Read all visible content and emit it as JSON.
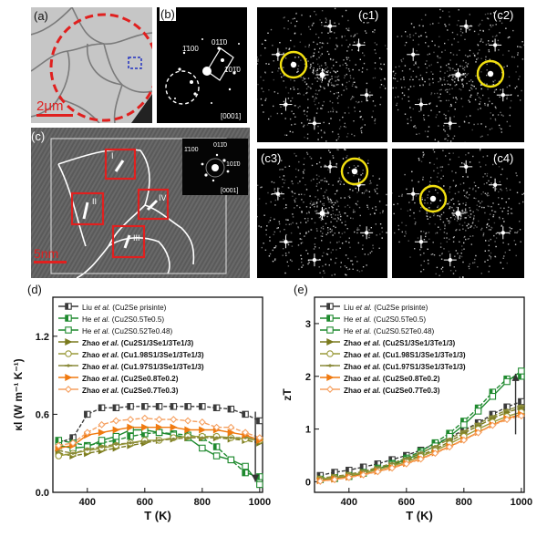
{
  "figure": {
    "panels": {
      "a": {
        "label": "(a)",
        "scale_bar": "2μm"
      },
      "b": {
        "label": "(b)",
        "zone_axis": "[0001]",
        "spots": [
          "1̄100",
          "011̄0",
          "101̄0"
        ]
      },
      "c": {
        "label": "(c)",
        "zone_axis": "[0001]",
        "scale_bar": "5nm",
        "spots": [
          "1̄100",
          "011̄0",
          "101̄0"
        ],
        "regions": [
          "I",
          "II",
          "III",
          "IV"
        ]
      },
      "c1": {
        "label": "(c1)"
      },
      "c2": {
        "label": "(c2)"
      },
      "c3": {
        "label": "(c3)"
      },
      "c4": {
        "label": "(c4)"
      },
      "d": {
        "label": "(d)"
      },
      "e": {
        "label": "(e)"
      }
    },
    "legend": [
      {
        "author": "Liu",
        "etal": "et al.",
        "formula": "(Cu2Se prisinte)",
        "bold": false,
        "color": "#3a3a3a",
        "marker": "half-square"
      },
      {
        "author": "He",
        "etal": "et al.",
        "formula": "(Cu2S0.5Te0.5)",
        "bold": false,
        "color": "#1f8a2f",
        "marker": "half-square"
      },
      {
        "author": "He",
        "etal": "et al.",
        "formula": "(Cu2S0.52Te0.48)",
        "bold": false,
        "color": "#1f8a2f",
        "marker": "open-square"
      },
      {
        "author": "Zhao",
        "etal": "et al.",
        "formula": "(Cu2S1/3Se1/3Te1/3)",
        "bold": true,
        "color": "#7a7a1e",
        "marker": "half-triangle"
      },
      {
        "author": "Zhao",
        "etal": "et al.",
        "formula": "(Cu1.98S1/3Se1/3Te1/3)",
        "bold": true,
        "color": "#9a9a3a",
        "marker": "open-circle"
      },
      {
        "author": "Zhao",
        "etal": "et al.",
        "formula": "(Cu1.97S1/3Se1/3Te1/3)",
        "bold": true,
        "color": "#8a8a3a",
        "marker": "star"
      },
      {
        "author": "Zhao",
        "etal": "et al.",
        "formula": "(Cu2Se0.8Te0.2)",
        "bold": true,
        "color": "#f07a10",
        "marker": "half-triangle"
      },
      {
        "author": "Zhao",
        "etal": "et al.",
        "formula": "(Cu2Se0.7Te0.3)",
        "bold": true,
        "color": "#f5a060",
        "marker": "open-diamond"
      }
    ]
  },
  "chart_data": [
    {
      "type": "line",
      "panel": "(d)",
      "xlabel": "T (K)",
      "ylabel": "κl (W m⁻¹ K⁻¹)",
      "xlim": [
        280,
        1010
      ],
      "ylim": [
        0,
        1.5
      ],
      "xticks": [
        400,
        600,
        800,
        1000
      ],
      "yticks": [
        0.0,
        0.6,
        1.2
      ],
      "x": [
        300,
        350,
        400,
        450,
        500,
        550,
        600,
        650,
        700,
        750,
        800,
        850,
        900,
        950,
        1000
      ],
      "series": [
        {
          "name": "Liu et al. (Cu2Se prisinte)",
          "values": [
            0.38,
            0.42,
            0.6,
            0.65,
            0.65,
            0.66,
            0.66,
            0.66,
            0.66,
            0.66,
            0.66,
            0.65,
            0.64,
            0.6,
            0.55
          ]
        },
        {
          "name": "He et al. (Cu2S0.5Te0.5)",
          "values": [
            0.4,
            0.38,
            0.36,
            0.38,
            0.4,
            0.43,
            0.45,
            0.46,
            0.45,
            0.44,
            0.42,
            0.35,
            0.25,
            0.15,
            0.12
          ]
        },
        {
          "name": "He et al. (Cu2S0.52Te0.48)",
          "values": [
            0.36,
            0.34,
            0.35,
            0.4,
            0.43,
            0.48,
            0.48,
            0.46,
            0.44,
            0.42,
            0.34,
            0.28,
            0.25,
            0.2,
            0.06
          ]
        },
        {
          "name": "Zhao et al. (Cu2S1/3Se1/3Te1/3)",
          "values": [
            0.3,
            0.28,
            0.3,
            0.32,
            0.34,
            0.36,
            0.38,
            0.4,
            0.41,
            0.42,
            0.42,
            0.42,
            0.41,
            0.4,
            0.38
          ]
        },
        {
          "name": "Zhao et al. (Cu1.98S1/3Se1/3Te1/3)",
          "values": [
            0.28,
            0.3,
            0.32,
            0.34,
            0.36,
            0.38,
            0.4,
            0.4,
            0.42,
            0.43,
            0.43,
            0.43,
            0.42,
            0.41,
            0.4
          ]
        },
        {
          "name": "Zhao et al. (Cu1.97S1/3Se1/3Te1/3)",
          "values": [
            0.32,
            0.3,
            0.33,
            0.35,
            0.37,
            0.38,
            0.39,
            0.4,
            0.41,
            0.42,
            0.42,
            0.42,
            0.42,
            0.42,
            0.41
          ]
        },
        {
          "name": "Zhao et al. (Cu2Se0.8Te0.2)",
          "values": [
            0.34,
            0.36,
            0.44,
            0.46,
            0.48,
            0.5,
            0.5,
            0.5,
            0.5,
            0.48,
            0.48,
            0.48,
            0.46,
            0.44,
            0.4
          ]
        },
        {
          "name": "Zhao et al. (Cu2Se0.7Te0.3)",
          "values": [
            0.36,
            0.38,
            0.46,
            0.52,
            0.55,
            0.56,
            0.57,
            0.56,
            0.56,
            0.55,
            0.54,
            0.5,
            0.5,
            0.46,
            0.42
          ]
        }
      ]
    },
    {
      "type": "line",
      "panel": "(e)",
      "xlabel": "T (K)",
      "ylabel": "zT",
      "xlim": [
        280,
        1010
      ],
      "ylim": [
        -0.2,
        3.5
      ],
      "xticks": [
        400,
        600,
        800,
        1000
      ],
      "yticks": [
        0,
        1,
        2,
        3
      ],
      "x": [
        300,
        350,
        400,
        450,
        500,
        550,
        600,
        650,
        700,
        750,
        800,
        850,
        900,
        950,
        1000
      ],
      "series": [
        {
          "name": "Liu et al. (Cu2Se prisinte)",
          "values": [
            0.12,
            0.18,
            0.22,
            0.28,
            0.34,
            0.42,
            0.5,
            0.6,
            0.72,
            0.84,
            0.98,
            1.12,
            1.28,
            1.42,
            1.52
          ]
        },
        {
          "name": "He et al. (Cu2S0.5Te0.5)",
          "values": [
            0.05,
            0.08,
            0.12,
            0.18,
            0.26,
            0.35,
            0.45,
            0.58,
            0.74,
            0.92,
            1.15,
            1.4,
            1.7,
            1.95,
            2.0
          ]
        },
        {
          "name": "He et al. (Cu2S0.52Te0.48)",
          "values": [
            0.04,
            0.06,
            0.1,
            0.16,
            0.24,
            0.33,
            0.42,
            0.54,
            0.68,
            0.86,
            1.08,
            1.34,
            1.62,
            1.9,
            2.1
          ]
        },
        {
          "name": "Zhao et al. (Cu2S1/3Se1/3Te1/3)",
          "values": [
            0.06,
            0.09,
            0.13,
            0.18,
            0.24,
            0.31,
            0.4,
            0.5,
            0.62,
            0.76,
            0.92,
            1.06,
            1.2,
            1.32,
            1.4
          ]
        },
        {
          "name": "Zhao et al. (Cu1.98S1/3Se1/3Te1/3)",
          "values": [
            0.05,
            0.08,
            0.12,
            0.17,
            0.23,
            0.3,
            0.38,
            0.48,
            0.59,
            0.72,
            0.86,
            1.0,
            1.13,
            1.24,
            1.32
          ]
        },
        {
          "name": "Zhao et al. (Cu1.97S1/3Se1/3Te1/3)",
          "values": [
            0.07,
            0.1,
            0.14,
            0.2,
            0.27,
            0.35,
            0.44,
            0.55,
            0.67,
            0.81,
            0.96,
            1.1,
            1.24,
            1.36,
            1.44
          ]
        },
        {
          "name": "Zhao et al. (Cu2Se0.8Te0.2)",
          "values": [
            0.02,
            0.05,
            0.09,
            0.14,
            0.2,
            0.27,
            0.35,
            0.44,
            0.55,
            0.67,
            0.8,
            0.94,
            1.08,
            1.2,
            1.28
          ]
        },
        {
          "name": "Zhao et al. (Cu2Se0.7Te0.3)",
          "values": [
            0.01,
            0.04,
            0.08,
            0.13,
            0.19,
            0.26,
            0.34,
            0.43,
            0.54,
            0.66,
            0.79,
            0.93,
            1.07,
            1.18,
            1.25
          ]
        }
      ]
    }
  ]
}
